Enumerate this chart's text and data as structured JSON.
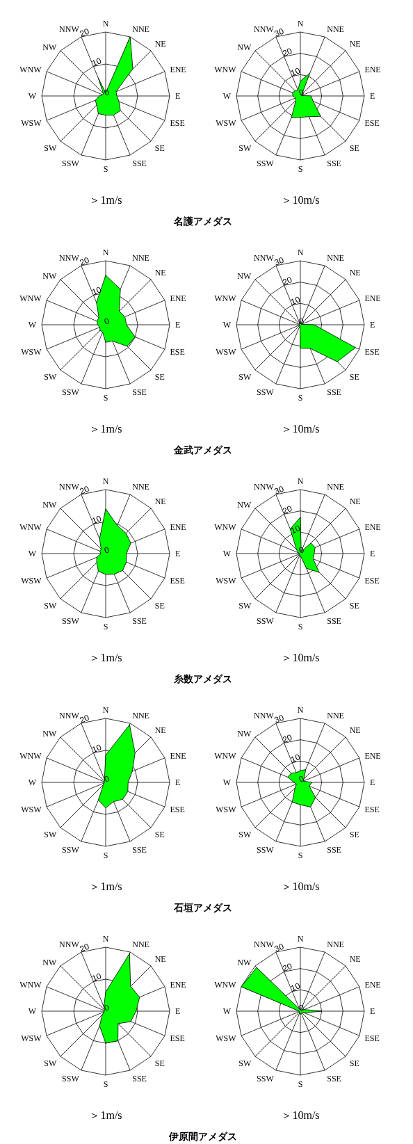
{
  "chart_data": [
    {
      "type": "radar",
      "xlabel": "＞1m/s",
      "annotations": [
        "名護アメダス"
      ],
      "categories": [
        "N",
        "NNE",
        "NE",
        "ENE",
        "E",
        "ESE",
        "SE",
        "SSE",
        "S",
        "SSW",
        "SW",
        "WSW",
        "W",
        "WNW",
        "NW",
        "NNW"
      ],
      "ylim": [
        0,
        20
      ],
      "yticks": [
        0,
        10,
        20
      ],
      "grid": true,
      "series": [
        {
          "color": "#00ff00",
          "values": [
            1,
            20,
            12,
            3.5,
            3.5,
            4.5,
            6.5,
            6.5,
            6,
            6,
            4,
            3.5,
            2,
            1,
            1,
            6
          ]
        }
      ]
    },
    {
      "type": "radar",
      "xlabel": "＞10m/s",
      "categories": [
        "N",
        "NNE",
        "NE",
        "ENE",
        "E",
        "ESE",
        "SE",
        "SSE",
        "S",
        "SSW",
        "SW",
        "WSW",
        "W",
        "WNW",
        "NW",
        "NNW"
      ],
      "ylim": [
        0,
        30
      ],
      "yticks": [
        0,
        10,
        20,
        30
      ],
      "grid": true,
      "series": [
        {
          "color": "#00ff00",
          "values": [
            7,
            11.5,
            1,
            0.5,
            5,
            6.5,
            13.5,
            10.5,
            10,
            11,
            3,
            2.5,
            3.5,
            4,
            3.5,
            3
          ]
        }
      ]
    },
    {
      "type": "radar",
      "xlabel": "＞1m/s",
      "annotations": [
        "金武アメダス"
      ],
      "categories": [
        "N",
        "NNE",
        "NE",
        "ENE",
        "E",
        "ESE",
        "SE",
        "SSE",
        "S",
        "SSW",
        "SW",
        "WSW",
        "W",
        "WNW",
        "NW",
        "NNW"
      ],
      "ylim": [
        0,
        20
      ],
      "yticks": [
        0,
        10,
        20
      ],
      "grid": true,
      "series": [
        {
          "color": "#00ff00",
          "values": [
            15.5,
            12,
            6,
            6.5,
            6.5,
            10,
            9.5,
            5.5,
            5.5,
            2.5,
            2.5,
            2,
            2.5,
            3,
            3,
            7.5
          ]
        }
      ]
    },
    {
      "type": "radar",
      "xlabel": "＞10m/s",
      "categories": [
        "N",
        "NNE",
        "NE",
        "ENE",
        "E",
        "ESE",
        "SE",
        "SSE",
        "S",
        "SSW",
        "SW",
        "WSW",
        "W",
        "WNW",
        "NW",
        "NNW"
      ],
      "ylim": [
        0,
        30
      ],
      "yticks": [
        0,
        10,
        20,
        30
      ],
      "grid": true,
      "series": [
        {
          "color": "#00ff00",
          "values": [
            1.5,
            0.5,
            0.5,
            0.5,
            6.5,
            28,
            24.5,
            12,
            11,
            0.5,
            0.5,
            0.5,
            0.5,
            0.5,
            0.5,
            1
          ]
        }
      ]
    },
    {
      "type": "radar",
      "xlabel": "＞1m/s",
      "annotations": [
        "糸数アメダス"
      ],
      "categories": [
        "N",
        "NNE",
        "NE",
        "ENE",
        "E",
        "ESE",
        "SE",
        "SSE",
        "S",
        "SSW",
        "SW",
        "WSW",
        "W",
        "WNW",
        "NW",
        "NNW"
      ],
      "ylim": [
        0,
        20
      ],
      "yticks": [
        0,
        10,
        20
      ],
      "grid": true,
      "series": [
        {
          "color": "#00ff00",
          "values": [
            14,
            9.5,
            9,
            8.5,
            6.5,
            7,
            7.5,
            7,
            6.5,
            6,
            4,
            3,
            1.5,
            2,
            2,
            5
          ]
        }
      ]
    },
    {
      "type": "radar",
      "xlabel": "＞10m/s",
      "categories": [
        "N",
        "NNE",
        "NE",
        "ENE",
        "E",
        "ESE",
        "SE",
        "SSE",
        "S",
        "SSW",
        "SW",
        "WSW",
        "W",
        "WNW",
        "NW",
        "NNW"
      ],
      "ylim": [
        0,
        30
      ],
      "yticks": [
        0,
        10,
        20,
        30
      ],
      "grid": true,
      "series": [
        {
          "color": "#00ff00",
          "values": [
            17,
            1,
            7,
            7.5,
            6.5,
            6.5,
            12.5,
            7.5,
            1,
            1,
            1,
            0.5,
            0.5,
            1,
            2.5,
            12.5
          ]
        }
      ]
    },
    {
      "type": "radar",
      "xlabel": "＞1m/s",
      "annotations": [
        "石垣アメダス"
      ],
      "categories": [
        "N",
        "NNE",
        "NE",
        "ENE",
        "E",
        "ESE",
        "SE",
        "SSE",
        "S",
        "SSW",
        "SW",
        "WSW",
        "W",
        "WNW",
        "NW",
        "NNW"
      ],
      "ylim": [
        0,
        20
      ],
      "yticks": [
        0,
        10,
        20
      ],
      "grid": true,
      "series": [
        {
          "color": "#00ff00",
          "values": [
            8.5,
            19.5,
            13,
            9,
            7,
            7.5,
            7.5,
            6.5,
            8,
            6,
            1,
            0.5,
            0.5,
            0.5,
            0.5,
            1
          ]
        }
      ]
    },
    {
      "type": "radar",
      "xlabel": "＞10m/s",
      "categories": [
        "N",
        "NNE",
        "NE",
        "ENE",
        "E",
        "ESE",
        "SE",
        "SSE",
        "S",
        "SSW",
        "SW",
        "WSW",
        "W",
        "WNW",
        "NW",
        "NNW"
      ],
      "ylim": [
        0,
        30
      ],
      "yticks": [
        0,
        10,
        20,
        30
      ],
      "grid": true,
      "series": [
        {
          "color": "#00ff00",
          "values": [
            5.5,
            6.5,
            2.5,
            1.5,
            5.5,
            4.5,
            10,
            12.5,
            10.5,
            10,
            3.5,
            2,
            3,
            6.5,
            6,
            5
          ]
        }
      ]
    },
    {
      "type": "radar",
      "xlabel": "＞1m/s",
      "annotations": [
        "伊原間アメダス"
      ],
      "categories": [
        "N",
        "NNE",
        "NE",
        "ENE",
        "E",
        "ESE",
        "SE",
        "SSE",
        "S",
        "SSW",
        "SW",
        "WSW",
        "W",
        "WNW",
        "NW",
        "NNW"
      ],
      "ylim": [
        0,
        20
      ],
      "yticks": [
        0,
        10,
        20
      ],
      "grid": true,
      "series": [
        {
          "color": "#00ff00",
          "values": [
            6,
            19.5,
            11,
            11.5,
            9.5,
            8.5,
            5.5,
            10,
            10,
            5,
            1.5,
            0.5,
            0.5,
            0.5,
            0.5,
            1.5
          ]
        }
      ]
    },
    {
      "type": "radar",
      "xlabel": "＞10m/s",
      "categories": [
        "N",
        "NNE",
        "NE",
        "ENE",
        "E",
        "ESE",
        "SE",
        "SSE",
        "S",
        "SSW",
        "SW",
        "WSW",
        "W",
        "WNW",
        "NW",
        "NNW"
      ],
      "ylim": [
        0,
        30
      ],
      "yticks": [
        0,
        10,
        20,
        30
      ],
      "grid": true,
      "series": [
        {
          "color": "#00ff00",
          "values": [
            1,
            0.5,
            0.5,
            2,
            10,
            2,
            1,
            1,
            1.5,
            1,
            0.5,
            0.5,
            0.5,
            30,
            29,
            1
          ]
        }
      ]
    }
  ]
}
